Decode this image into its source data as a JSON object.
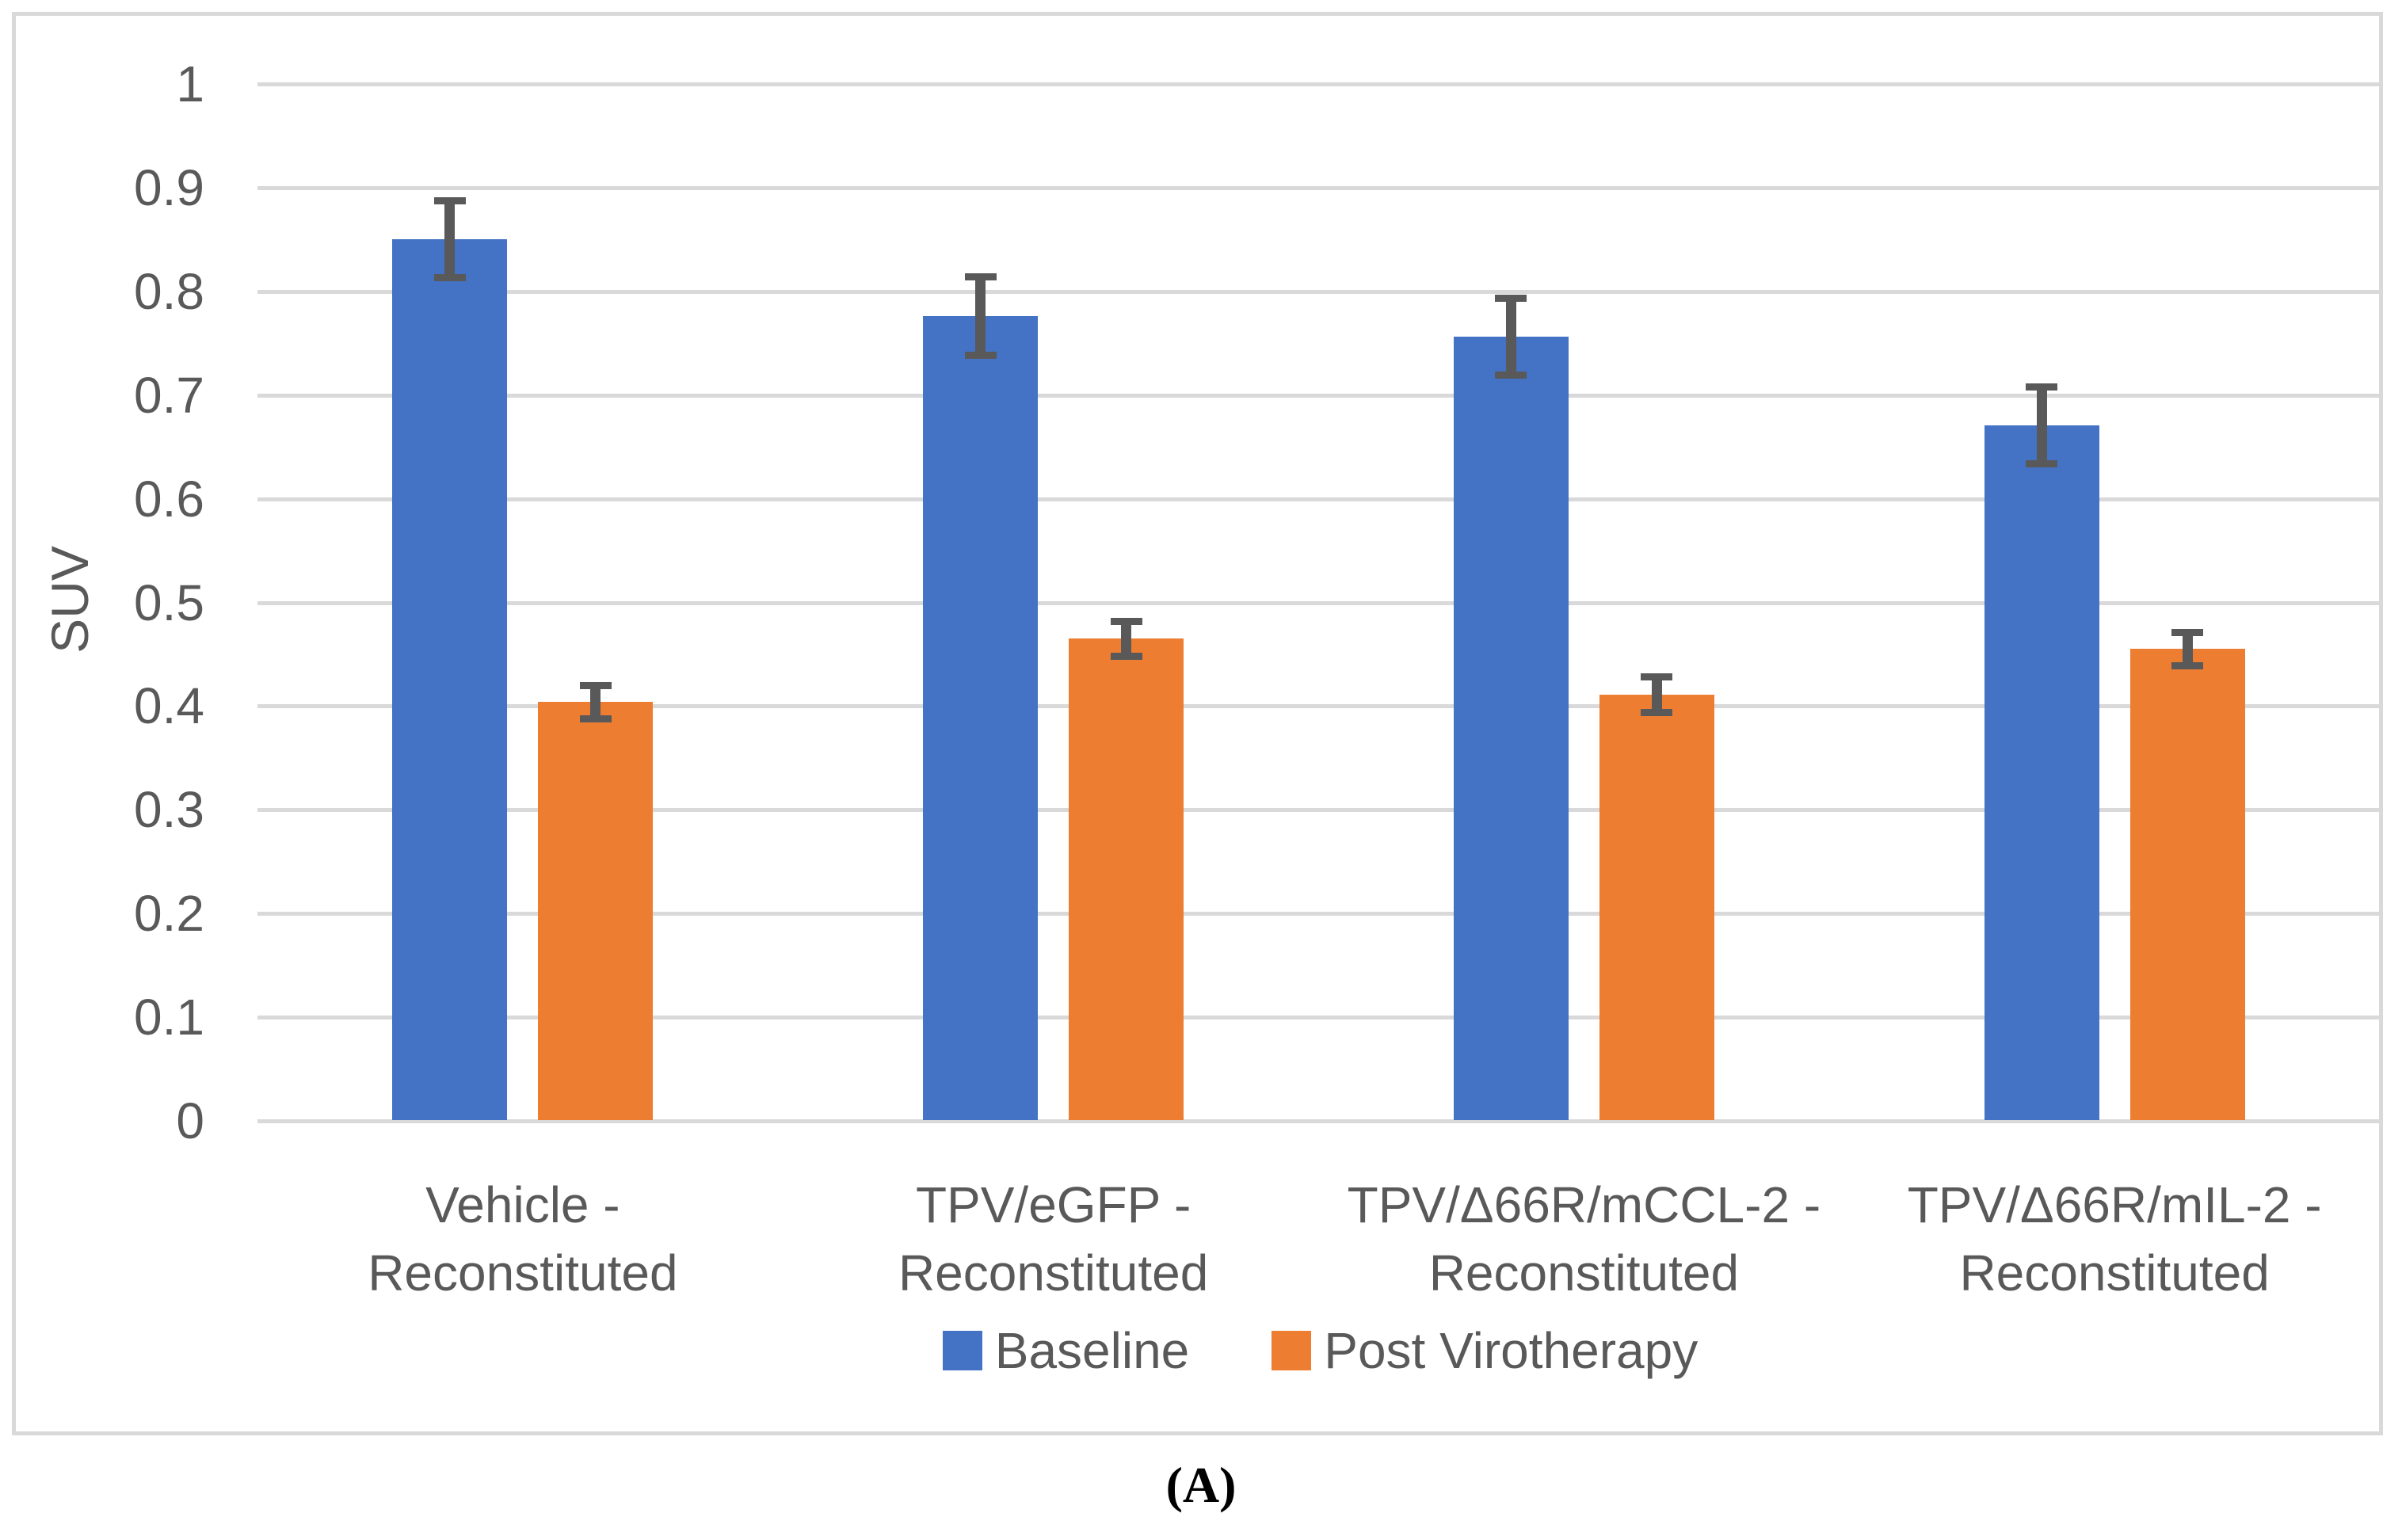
{
  "figure": {
    "caption": "(A)"
  },
  "chart_data": {
    "type": "bar",
    "title": "",
    "xlabel": "",
    "ylabel": "SUV",
    "ylim": [
      0,
      1
    ],
    "y_ticks": [
      "0",
      "0.1",
      "0.2",
      "0.3",
      "0.4",
      "0.5",
      "0.6",
      "0.7",
      "0.8",
      "0.9",
      "1"
    ],
    "grid": true,
    "legend_position": "bottom-center",
    "categories": [
      [
        "Vehicle -",
        "Reconstituted"
      ],
      [
        "TPV/eGFP -",
        "Reconstituted"
      ],
      [
        "TPV/Δ66R/mCCL-2 -",
        "Reconstituted"
      ],
      [
        "TPV/Δ66R/mIL-2 -",
        "Reconstituted"
      ]
    ],
    "series": [
      {
        "name": "Baseline",
        "color": "#4472C4",
        "values": [
          0.85,
          0.776,
          0.756,
          0.671
        ],
        "errors": [
          0.037,
          0.038,
          0.037,
          0.037
        ]
      },
      {
        "name": "Post Virotherapy",
        "color": "#ED7D31",
        "values": [
          0.404,
          0.465,
          0.411,
          0.455
        ],
        "errors": [
          0.016,
          0.017,
          0.017,
          0.016
        ]
      }
    ],
    "error_bar_color": "#595959",
    "gridline_color": "#D9D9D9",
    "axis_text_color": "#595959",
    "frame_color": "#D9D9D9"
  }
}
